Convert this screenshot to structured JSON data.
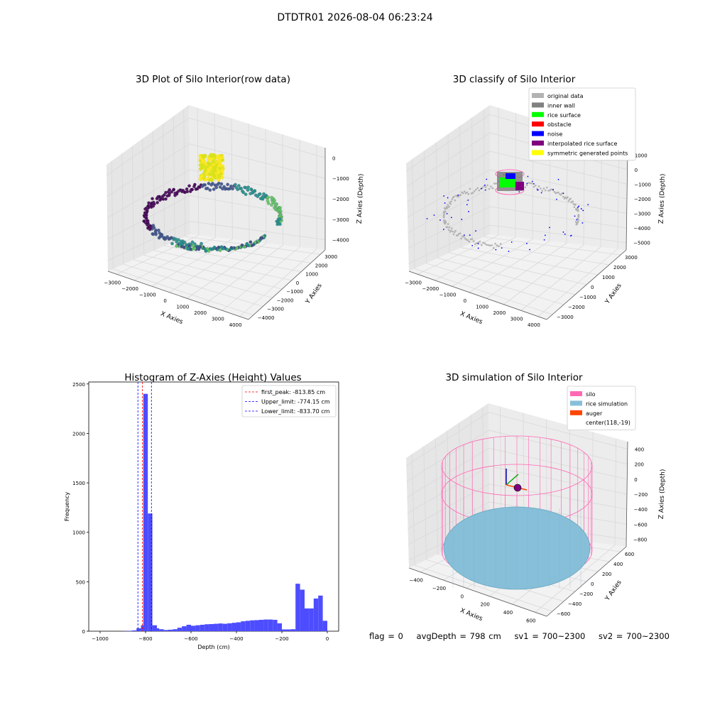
{
  "figure": {
    "suptitle": "DTDTR01 2026-08-04 06:23:24"
  },
  "status": {
    "flag": "flag = 0",
    "avg_depth": "avgDepth = 798 cm",
    "sv1": "sv1 = 700~2300",
    "sv2": "sv2 = 700~2300"
  },
  "colors": {
    "grid": "#d9d9d9",
    "pane": "#f2f2f2",
    "hist_bar": "#4d4dff",
    "original": "#b3b3b3",
    "inner_wall": "#808080",
    "rice_surface": "#00ff00",
    "obstacle": "#ff0000",
    "noise": "#0000ff",
    "interpolated": "#800080",
    "symmetric": "#ffff00",
    "silo": "#ff69b4",
    "rice_sim": "#87bfd9",
    "auger": "#ff4500"
  },
  "chart_data": [
    {
      "type": "scatter",
      "projection": "3d",
      "title": "3D Plot of Silo Interior(row data)",
      "xlabel": "X Axies",
      "ylabel": "Y Axies",
      "zlabel": "Z Axies (Depth)",
      "xticks": [
        "−3000",
        "−2000",
        "−1000",
        "0",
        "1000",
        "2000",
        "3000",
        "4000"
      ],
      "yticks": [
        "−4000",
        "−3000",
        "−2000",
        "−1000",
        "0",
        "1000",
        "2000",
        "3000"
      ],
      "zticks": [
        "0",
        "−1000",
        "−2000",
        "−3000",
        "−4000"
      ],
      "xlim": [
        -3500,
        4500
      ],
      "ylim": [
        -4200,
        3500
      ],
      "zlim": [
        -4800,
        300
      ],
      "colormap": "viridis",
      "clusters": [
        {
          "name": "wall ring",
          "radius": 3300,
          "z": -3000
        },
        {
          "name": "dense top cluster",
          "x": 118,
          "y": -19,
          "z": -800
        }
      ]
    },
    {
      "type": "scatter",
      "projection": "3d",
      "title": "3D classify of Silo Interior",
      "xlabel": "X Axies",
      "ylabel": "Y Axies",
      "zlabel": "Z Axies (Depth)",
      "xticks": [
        "−3000",
        "−2000",
        "−1000",
        "0",
        "1000",
        "2000",
        "3000",
        "4000"
      ],
      "yticks": [
        "−3000",
        "−2000",
        "−1000",
        "0",
        "1000",
        "2000",
        "3000"
      ],
      "zticks": [
        "1000",
        "0",
        "−1000",
        "−2000",
        "−3000",
        "−4000",
        "−5000"
      ],
      "legend_position": "upper right",
      "legend": [
        {
          "label": "original data",
          "color": "#b3b3b3"
        },
        {
          "label": "inner wall",
          "color": "#808080"
        },
        {
          "label": "rice surface",
          "color": "#00ff00"
        },
        {
          "label": "obstacle",
          "color": "#ff0000"
        },
        {
          "label": "noise",
          "color": "#0000ff"
        },
        {
          "label": "interpolated rice surface",
          "color": "#800080"
        },
        {
          "label": "symmetric generated points",
          "color": "#ffff00"
        }
      ]
    },
    {
      "type": "bar",
      "title": "Histogram of Z-Axies (Height) Values",
      "xlabel": "Depth (cm)",
      "ylabel": "Frequency",
      "xlim": [
        -1050,
        50
      ],
      "ylim": [
        0,
        2520
      ],
      "xticks": [
        "−1000",
        "−800",
        "−600",
        "−400",
        "−200",
        "0"
      ],
      "yticks": [
        "0",
        "500",
        "1000",
        "1500",
        "2000",
        "2500"
      ],
      "bin_width": 20,
      "bins": [
        [
          -900,
          2
        ],
        [
          -880,
          4
        ],
        [
          -860,
          8
        ],
        [
          -840,
          30
        ],
        [
          -820,
          60
        ],
        [
          -810,
          2400
        ],
        [
          -790,
          1190
        ],
        [
          -770,
          60
        ],
        [
          -760,
          30
        ],
        [
          -740,
          20
        ],
        [
          -720,
          12
        ],
        [
          -700,
          15
        ],
        [
          -680,
          20
        ],
        [
          -660,
          35
        ],
        [
          -640,
          50
        ],
        [
          -620,
          65
        ],
        [
          -600,
          55
        ],
        [
          -580,
          60
        ],
        [
          -560,
          65
        ],
        [
          -540,
          70
        ],
        [
          -520,
          72
        ],
        [
          -500,
          75
        ],
        [
          -480,
          78
        ],
        [
          -460,
          75
        ],
        [
          -440,
          80
        ],
        [
          -420,
          85
        ],
        [
          -400,
          90
        ],
        [
          -380,
          100
        ],
        [
          -360,
          105
        ],
        [
          -340,
          110
        ],
        [
          -320,
          112
        ],
        [
          -300,
          115
        ],
        [
          -280,
          118
        ],
        [
          -260,
          118
        ],
        [
          -240,
          115
        ],
        [
          -220,
          80
        ],
        [
          -200,
          18
        ],
        [
          -180,
          18
        ],
        [
          -160,
          20
        ],
        [
          -140,
          480
        ],
        [
          -120,
          420
        ],
        [
          -100,
          230
        ],
        [
          -80,
          230
        ],
        [
          -60,
          330
        ],
        [
          -40,
          360
        ],
        [
          -20,
          105
        ]
      ],
      "vlines": [
        {
          "label": "first_peak: -813.85 cm",
          "x": -813.85,
          "color": "#ff0000"
        },
        {
          "label": "Upper_limit: -774.15 cm",
          "x": -774.15,
          "color": "#0000ff"
        },
        {
          "label": "Lower_limit: -833.70 cm",
          "x": -833.7,
          "color": "#0000ff"
        }
      ],
      "legend_position": "upper right"
    },
    {
      "type": "scatter",
      "projection": "3d",
      "title": "3D simulation of Silo Interior",
      "xlabel": "X Axies",
      "ylabel": "Y Axies",
      "zlabel": "Z Axies (Depth)",
      "xticks": [
        "−400",
        "−200",
        "0",
        "200",
        "400",
        "600"
      ],
      "yticks": [
        "−600",
        "−400",
        "−200",
        "0",
        "200",
        "400",
        "600"
      ],
      "zticks": [
        "400",
        "200",
        "0",
        "−200",
        "−400",
        "−600",
        "−800"
      ],
      "legend_position": "upper right",
      "legend": [
        {
          "label": "silo",
          "color": "#ff69b4"
        },
        {
          "label": "rice simulation",
          "color": "#87bfd9"
        },
        {
          "label": "auger",
          "color": "#ff4500"
        },
        {
          "label": "center(118,-19)",
          "color": ""
        }
      ],
      "center": [
        118,
        -19
      ]
    }
  ]
}
